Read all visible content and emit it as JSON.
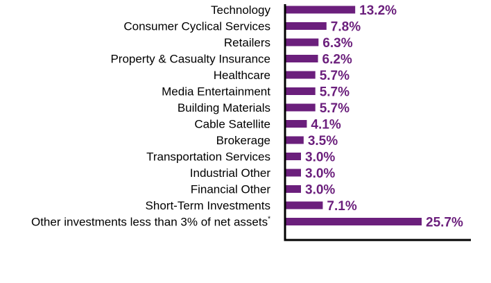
{
  "chart_data": {
    "type": "bar",
    "orientation": "horizontal",
    "title": "",
    "xlabel": "",
    "ylabel": "",
    "categories": [
      "Technology",
      "Consumer Cyclical Services",
      "Retailers",
      "Property & Casualty Insurance",
      "Healthcare",
      "Media Entertainment",
      "Building Materials",
      "Cable Satellite",
      "Brokerage",
      "Transportation Services",
      "Industrial Other",
      "Financial Other",
      "Short-Term Investments",
      "Other investments less than 3% of net assets"
    ],
    "category_superscripts": [
      "",
      "",
      "",
      "",
      "",
      "",
      "",
      "",
      "",
      "",
      "",
      "",
      "",
      "*"
    ],
    "values": [
      13.2,
      7.8,
      6.3,
      6.2,
      5.7,
      5.7,
      5.7,
      4.1,
      3.5,
      3.0,
      3.0,
      3.0,
      7.1,
      25.7
    ],
    "value_labels": [
      "13.2%",
      "7.8%",
      "6.3%",
      "6.2%",
      "5.7%",
      "5.7%",
      "5.7%",
      "4.1%",
      "3.5%",
      "3.0%",
      "3.0%",
      "3.0%",
      "7.1%",
      "25.7%"
    ],
    "xlim": [
      0,
      35
    ],
    "grid": false,
    "legend": "none",
    "bar_color": "#6b1f7c",
    "label_color": "#6b1f7c",
    "axis_color": "#000000"
  }
}
